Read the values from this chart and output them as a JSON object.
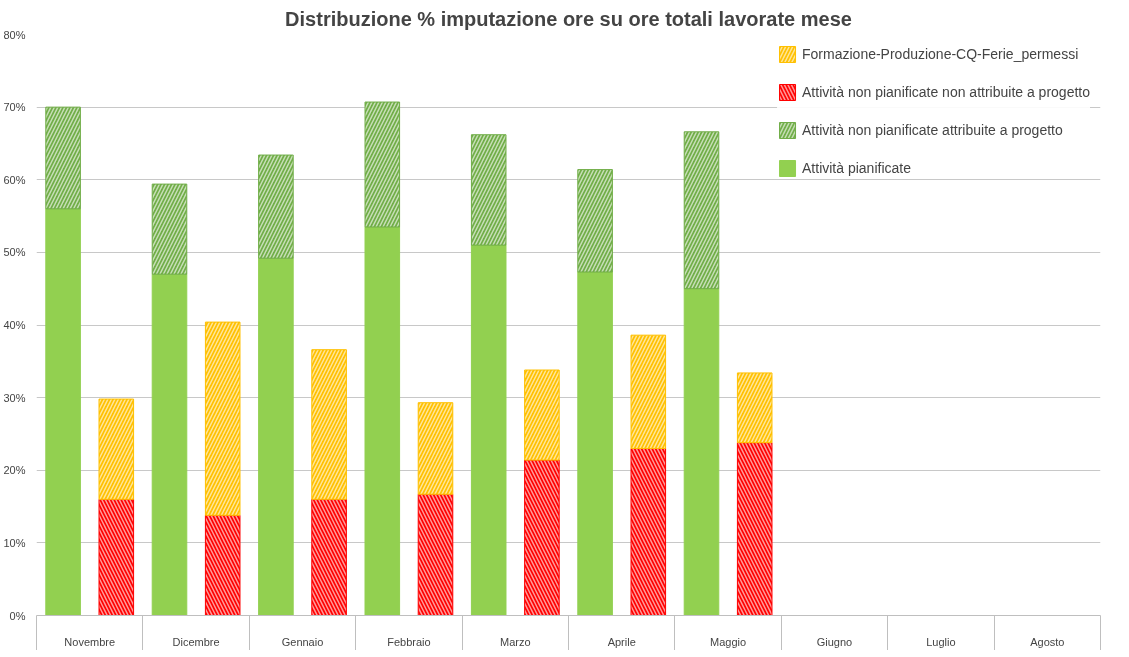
{
  "chart_data": {
    "type": "bar",
    "title": "Distribuzione % imputazione ore su ore totali lavorate mese",
    "stacked": true,
    "categories": [
      "Novembre",
      null,
      "Dicembre",
      null,
      "Gennaio",
      null,
      "Febbraio",
      null,
      "Marzo",
      null,
      "Aprile",
      null,
      "Maggio",
      null,
      "Giugno",
      null,
      "Luglio",
      null,
      "Agosto",
      null
    ],
    "series": [
      {
        "name": "Attività pianificate",
        "color": "#92d050",
        "values": [
          56,
          null,
          47,
          null,
          49.2,
          null,
          53.5,
          null,
          51,
          null,
          47.3,
          null,
          45,
          null,
          null,
          null,
          null,
          null,
          null,
          null
        ]
      },
      {
        "name": "Attività non pianificate attribuite a progetto",
        "color": "#70ad47",
        "values": [
          14,
          null,
          12.4,
          null,
          14.2,
          null,
          17.2,
          null,
          15.2,
          null,
          14.1,
          null,
          21.6,
          null,
          null,
          null,
          null,
          null,
          null,
          null
        ]
      },
      {
        "name": "Attività non pianificate non attribuite a progetto",
        "color": "#ff0000",
        "values": [
          null,
          16,
          null,
          13.8,
          null,
          16,
          null,
          16.7,
          null,
          21.4,
          null,
          23,
          null,
          23.8,
          null,
          null,
          null,
          null,
          null,
          null
        ]
      },
      {
        "name": "Formazione-Produzione-CQ-Ferie_permessi",
        "color": "#ffc000",
        "values": [
          null,
          13.8,
          null,
          26.6,
          null,
          20.6,
          null,
          12.6,
          null,
          12.4,
          null,
          15.6,
          null,
          9.6,
          null,
          null,
          null,
          null,
          null,
          null
        ]
      }
    ],
    "ylim": [
      0,
      80
    ],
    "yticks": [
      {
        "value": 0,
        "label": "0%"
      },
      {
        "value": 10,
        "label": "10%"
      },
      {
        "value": 20,
        "label": "20%"
      },
      {
        "value": 30,
        "label": "30%"
      },
      {
        "value": 40,
        "label": "40%"
      },
      {
        "value": 50,
        "label": "50%"
      },
      {
        "value": 60,
        "label": "60%"
      },
      {
        "value": 70,
        "label": "70%"
      },
      {
        "value": 80,
        "label": "80%"
      }
    ],
    "grid": "y",
    "legend": "top right"
  }
}
